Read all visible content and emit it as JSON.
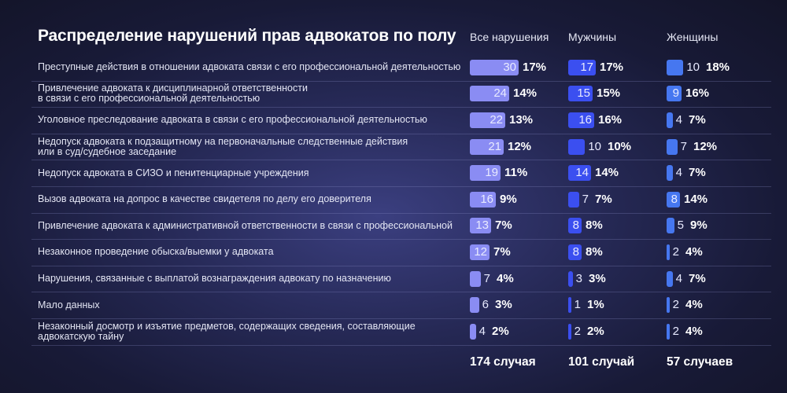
{
  "chart_data": {
    "type": "bar",
    "title": "Распределение нарушений прав адвокатов по полу",
    "series": [
      {
        "name": "Все нарушения",
        "color": "#8a8cf3",
        "values": [
          30,
          24,
          22,
          21,
          19,
          16,
          13,
          12,
          7,
          6,
          4
        ],
        "percents": [
          "17%",
          "14%",
          "13%",
          "12%",
          "11%",
          "9%",
          "7%",
          "7%",
          "4%",
          "3%",
          "2%"
        ],
        "total": "174 случая"
      },
      {
        "name": "Мужчины",
        "color": "#3b4ff0",
        "values": [
          17,
          15,
          16,
          10,
          14,
          7,
          8,
          8,
          3,
          1,
          2
        ],
        "percents": [
          "17%",
          "15%",
          "16%",
          "10%",
          "14%",
          "7%",
          "8%",
          "8%",
          "3%",
          "1%",
          "2%"
        ],
        "total": "101 случай"
      },
      {
        "name": "Женщины",
        "color": "#4677f0",
        "values": [
          10,
          9,
          4,
          7,
          4,
          8,
          5,
          2,
          4,
          2,
          2
        ],
        "percents": [
          "18%",
          "16%",
          "7%",
          "12%",
          "7%",
          "14%",
          "9%",
          "4%",
          "7%",
          "4%",
          "4%"
        ],
        "total": "57 случаев"
      }
    ],
    "categories": [
      [
        "Преступные действия в отношении адвоката связи с его профессиональной деятельностью"
      ],
      [
        "Привлечение адвоката к дисциплинарной ответственности",
        "в связи с его профессиональной деятельностью"
      ],
      [
        "Уголовное преследование адвоката в связи с его профессиональной деятельностью"
      ],
      [
        "Недопуск адвоката к подзащитному на первоначальные следственные действия",
        "или в суд/судебное заседание"
      ],
      [
        "Недопуск адвоката в СИЗО и пенитенциарные учреждения"
      ],
      [
        "Вызов адвоката на допрос в качестве свидетеля по делу его доверителя"
      ],
      [
        "Привлечение адвоката к административной ответственности в связи с профессиональной"
      ],
      [
        "Незаконное проведение обыска/выемки у адвоката"
      ],
      [
        "Нарушения, связанные с выплатой вознаграждения адвокату по назначению"
      ],
      [
        "Мало данных"
      ],
      [
        "Незаконный досмотр и изъятие предметов, содержащих сведения, составляющие",
        "адвокатскую тайну"
      ]
    ]
  }
}
